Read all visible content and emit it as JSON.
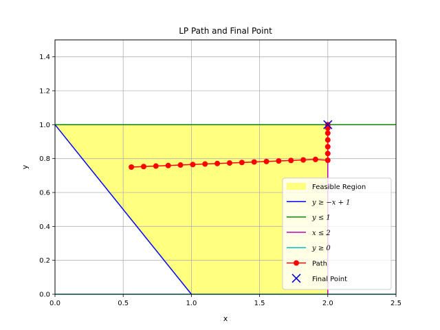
{
  "chart_data": {
    "type": "line",
    "title": "LP Path and Final Point",
    "xlabel": "x",
    "ylabel": "y",
    "xlim": [
      0.0,
      2.5
    ],
    "ylim": [
      0.0,
      1.5
    ],
    "xticks": [
      "0.0",
      "0.5",
      "1.0",
      "1.5",
      "2.0",
      "2.5"
    ],
    "yticks": [
      "0.0",
      "0.2",
      "0.4",
      "0.6",
      "0.8",
      "1.0",
      "1.2",
      "1.4"
    ],
    "grid": true,
    "legend_position": "lower-right",
    "feasible_region": {
      "name": "Feasible Region",
      "color": "#ffff80",
      "polygon": [
        [
          0,
          1
        ],
        [
          2,
          1
        ],
        [
          2,
          0
        ],
        [
          1,
          0
        ]
      ]
    },
    "constraints": [
      {
        "name": "y ≥ −x + 1",
        "color": "#0000ff",
        "x": [
          0,
          1
        ],
        "y": [
          1,
          0
        ]
      },
      {
        "name": "y ≤ 1",
        "color": "#008000",
        "x": [
          0,
          2.5
        ],
        "y": [
          1,
          1
        ]
      },
      {
        "name": "x ≤ 2",
        "color": "#bf00bf",
        "x": [
          2,
          2
        ],
        "y": [
          0,
          1
        ]
      },
      {
        "name": "y ≥ 0",
        "color": "#00bfbf",
        "x": [
          0,
          2.5
        ],
        "y": [
          0,
          0
        ]
      }
    ],
    "path": {
      "name": "Path",
      "color": "#ff0000",
      "x": [
        0.56,
        0.65,
        0.74,
        0.83,
        0.92,
        1.01,
        1.1,
        1.19,
        1.28,
        1.37,
        1.46,
        1.55,
        1.64,
        1.73,
        1.82,
        1.91,
        2.0,
        2.0,
        2.0,
        2.0,
        2.0,
        2.0,
        2.0
      ],
      "y": [
        0.75,
        0.753,
        0.756,
        0.759,
        0.762,
        0.765,
        0.768,
        0.771,
        0.774,
        0.777,
        0.78,
        0.783,
        0.786,
        0.789,
        0.792,
        0.795,
        0.79,
        0.83,
        0.87,
        0.91,
        0.95,
        0.98,
        1.0
      ]
    },
    "final_point": {
      "name": "Final Point",
      "color": "#0000cc",
      "x": 2.0,
      "y": 1.0
    }
  }
}
